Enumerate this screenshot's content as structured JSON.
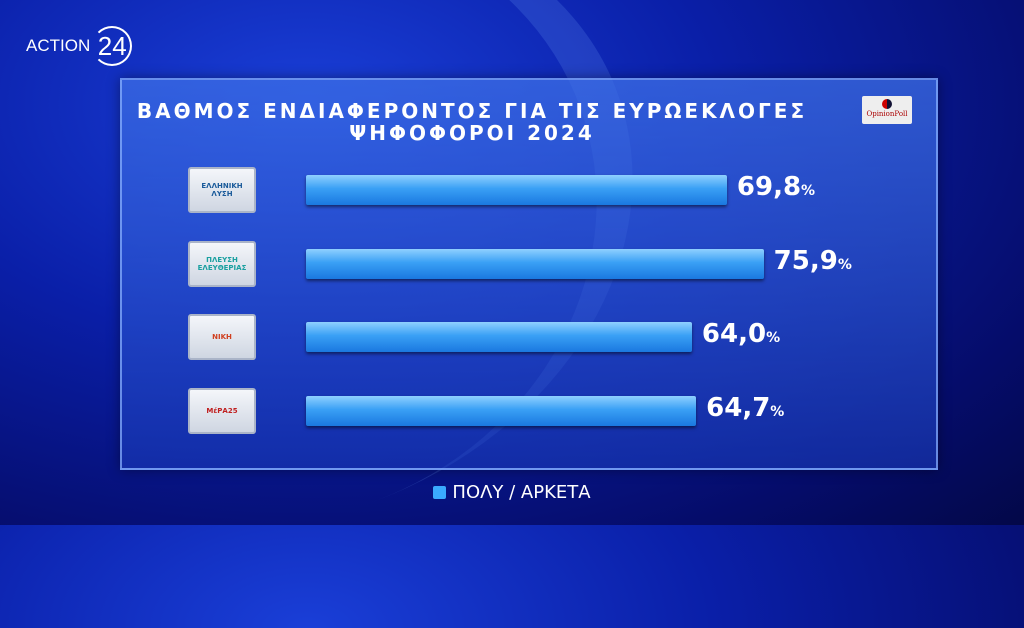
{
  "brand": {
    "text": "ACTION",
    "number": "24"
  },
  "pollster_logo": "OpinionPoll",
  "chart_data": {
    "type": "bar",
    "orientation": "horizontal",
    "title": "ΒΑΘΜΟΣ ΕΝΔΙΑΦΕΡΟΝΤΟΣ ΓΙΑ ΤΙΣ ΕΥΡΩΕΚΛΟΓΕΣ",
    "subtitle": "ΨΗΦΟΦΟΡΟΙ 2024",
    "categories": [
      "ΕΛΛΗΝΙΚΗ ΛΥΣΗ",
      "ΠΛΕΥΣΗ ΕΛΕΥΘΕΡΙΑΣ",
      "ΝΙΚΗ",
      "ΜέΡΑ25"
    ],
    "series": [
      {
        "name": "ΠΟΛΥ / ΑΡΚΕΤΑ",
        "values": [
          69.8,
          75.9,
          64.0,
          64.7
        ],
        "color": "#3aa0f5"
      }
    ],
    "labels": [
      "69,8",
      "75,9",
      "64,0",
      "64,7"
    ],
    "unit": "%",
    "xlim": [
      0,
      100
    ],
    "legend": "bottom",
    "grid": false
  }
}
